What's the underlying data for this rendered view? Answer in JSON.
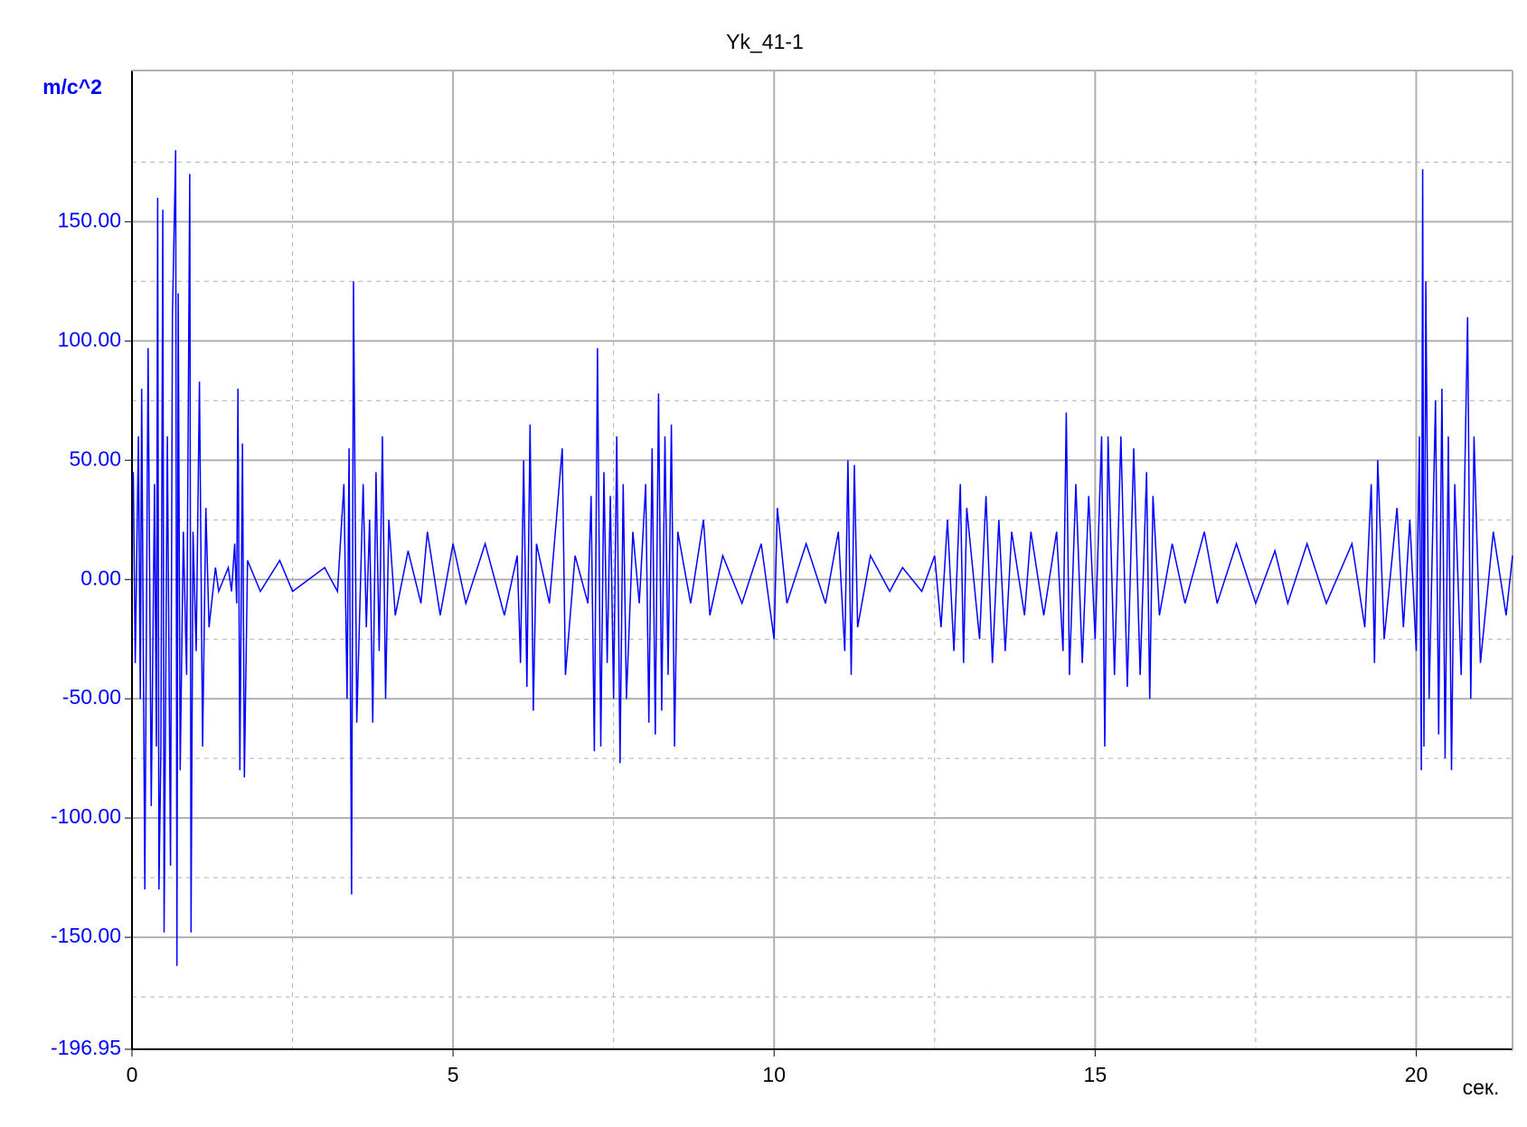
{
  "chart_data": {
    "type": "line",
    "title": "Yk_41-1",
    "y_label": "m/c^2",
    "x_label": "сек.",
    "xlim": [
      0,
      21.5
    ],
    "ylim": [
      -196.95,
      213.4
    ],
    "xticks": [
      0,
      5,
      10,
      15,
      20
    ],
    "yticks": [
      {
        "value": -196.95,
        "label": "-196.95"
      },
      {
        "value": -150,
        "label": "-150.00"
      },
      {
        "value": -100,
        "label": "-100.00"
      },
      {
        "value": -50,
        "label": "-50.00"
      },
      {
        "value": 0,
        "label": "0.00"
      },
      {
        "value": 50,
        "label": "50.00"
      },
      {
        "value": 100,
        "label": "100.00"
      },
      {
        "value": 150,
        "label": "150.00"
      }
    ],
    "minor_xticks": [
      2.5,
      7.5,
      12.5,
      17.5
    ],
    "minor_yticks": [
      -175,
      -125,
      -75,
      -25,
      25,
      75,
      125,
      175
    ],
    "grid": true,
    "series": [
      {
        "color": "#0000ff",
        "x": [
          0.02,
          0.05,
          0.1,
          0.13,
          0.15,
          0.2,
          0.25,
          0.3,
          0.35,
          0.38,
          0.4,
          0.42,
          0.45,
          0.48,
          0.5,
          0.55,
          0.6,
          0.63,
          0.68,
          0.7,
          0.72,
          0.75,
          0.8,
          0.85,
          0.9,
          0.92,
          0.95,
          1.0,
          1.05,
          1.1,
          1.15,
          1.2,
          1.3,
          1.35,
          1.5,
          1.55,
          1.6,
          1.63,
          1.65,
          1.68,
          1.72,
          1.75,
          1.8,
          2.0,
          2.3,
          2.5,
          3.0,
          3.2,
          3.3,
          3.35,
          3.38,
          3.42,
          3.45,
          3.5,
          3.6,
          3.65,
          3.7,
          3.75,
          3.8,
          3.85,
          3.9,
          3.95,
          4.0,
          4.1,
          4.3,
          4.5,
          4.6,
          4.8,
          5.0,
          5.2,
          5.5,
          5.8,
          6.0,
          6.05,
          6.1,
          6.15,
          6.2,
          6.25,
          6.3,
          6.5,
          6.7,
          6.75,
          6.9,
          7.1,
          7.15,
          7.2,
          7.25,
          7.3,
          7.35,
          7.4,
          7.45,
          7.5,
          7.55,
          7.6,
          7.65,
          7.7,
          7.8,
          7.9,
          8.0,
          8.05,
          8.1,
          8.15,
          8.2,
          8.25,
          8.3,
          8.35,
          8.4,
          8.45,
          8.5,
          8.7,
          8.9,
          9.0,
          9.2,
          9.5,
          9.8,
          10.0,
          10.05,
          10.2,
          10.5,
          10.8,
          11.0,
          11.1,
          11.15,
          11.2,
          11.25,
          11.3,
          11.5,
          11.8,
          12.0,
          12.3,
          12.5,
          12.6,
          12.7,
          12.8,
          12.9,
          12.95,
          13.0,
          13.2,
          13.3,
          13.4,
          13.5,
          13.6,
          13.7,
          13.9,
          14.0,
          14.2,
          14.4,
          14.5,
          14.55,
          14.6,
          14.7,
          14.8,
          14.9,
          15.0,
          15.1,
          15.15,
          15.2,
          15.3,
          15.4,
          15.5,
          15.6,
          15.7,
          15.8,
          15.85,
          15.9,
          16.0,
          16.2,
          16.4,
          16.7,
          16.9,
          17.2,
          17.5,
          17.8,
          18.0,
          18.3,
          18.6,
          19.0,
          19.2,
          19.3,
          19.35,
          19.4,
          19.5,
          19.7,
          19.8,
          19.9,
          20.0,
          20.05,
          20.08,
          20.1,
          20.12,
          20.15,
          20.2,
          20.3,
          20.35,
          20.4,
          20.45,
          20.5,
          20.55,
          20.6,
          20.7,
          20.8,
          20.85,
          20.9,
          21.0,
          21.2,
          21.4,
          21.5
        ],
        "values": [
          45,
          -35,
          60,
          -50,
          80,
          -130,
          97,
          -95,
          40,
          -70,
          160,
          -130,
          -70,
          155,
          -148,
          60,
          -120,
          110,
          180,
          -162,
          120,
          -80,
          20,
          -40,
          170,
          -148,
          20,
          -30,
          83,
          -70,
          30,
          -20,
          5,
          -5,
          5,
          -5,
          15,
          -10,
          80,
          -80,
          57,
          -83,
          8,
          -5,
          8,
          -5,
          5,
          -5,
          40,
          -50,
          55,
          -132,
          125,
          -60,
          40,
          -20,
          25,
          -60,
          45,
          -30,
          60,
          -50,
          25,
          -15,
          12,
          -10,
          20,
          -15,
          15,
          -10,
          15,
          -15,
          10,
          -35,
          50,
          -45,
          65,
          -55,
          15,
          -10,
          55,
          -40,
          10,
          -10,
          35,
          -72,
          97,
          -70,
          45,
          -35,
          35,
          -50,
          60,
          -77,
          40,
          -50,
          20,
          -10,
          40,
          -60,
          55,
          -65,
          78,
          -55,
          60,
          -40,
          65,
          -70,
          20,
          -10,
          25,
          -15,
          10,
          -10,
          15,
          -25,
          30,
          -10,
          15,
          -10,
          20,
          -30,
          50,
          -40,
          48,
          -20,
          10,
          -5,
          5,
          -5,
          10,
          -20,
          25,
          -30,
          40,
          -35,
          30,
          -25,
          35,
          -35,
          25,
          -30,
          20,
          -15,
          20,
          -15,
          20,
          -30,
          70,
          -40,
          40,
          -35,
          35,
          -25,
          60,
          -70,
          60,
          -40,
          60,
          -45,
          55,
          -40,
          45,
          -50,
          35,
          -15,
          15,
          -10,
          20,
          -10,
          15,
          -10,
          12,
          -10,
          15,
          -10,
          15,
          -20,
          40,
          -35,
          50,
          -25,
          30,
          -20,
          25,
          -30,
          60,
          -80,
          172,
          -70,
          125,
          -50,
          75,
          -65,
          80,
          -75,
          60,
          -80,
          40,
          -40,
          110,
          -50,
          60,
          -35,
          20,
          -15,
          10
        ]
      }
    ]
  }
}
